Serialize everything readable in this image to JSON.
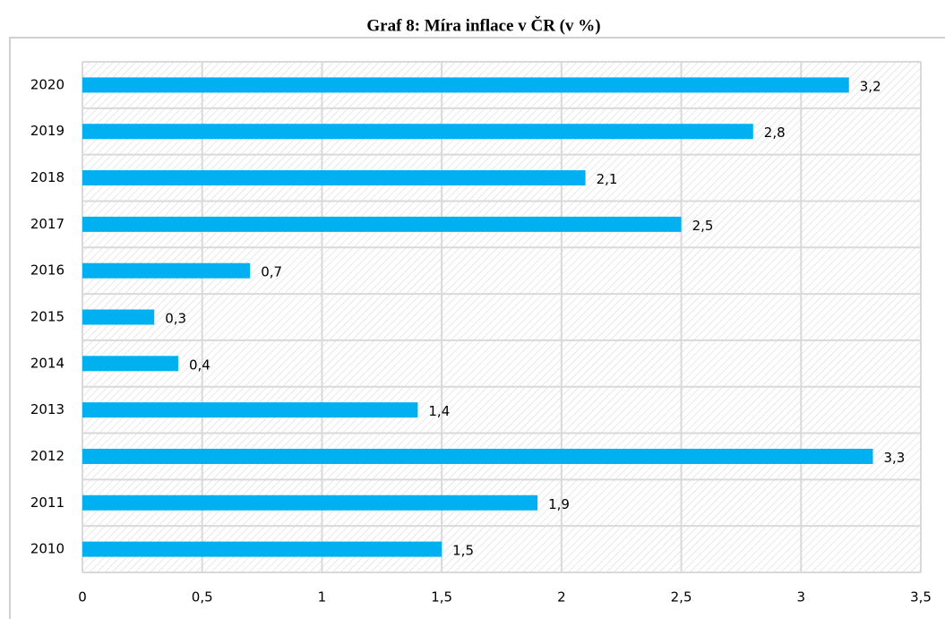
{
  "chart_data": {
    "type": "bar",
    "orientation": "horizontal",
    "title": "Graf 8: Míra inflace v ČR (v %)",
    "categories": [
      "2020",
      "2019",
      "2018",
      "2017",
      "2016",
      "2015",
      "2014",
      "2013",
      "2012",
      "2011",
      "2010"
    ],
    "values": [
      3.2,
      2.8,
      2.1,
      2.5,
      0.7,
      0.3,
      0.4,
      1.4,
      3.3,
      1.9,
      1.5
    ],
    "value_labels": [
      "3,2",
      "2,8",
      "2,1",
      "2,5",
      "0,7",
      "0,3",
      "0,4",
      "1,4",
      "3,3",
      "1,9",
      "1,5"
    ],
    "color": "#00b0f0",
    "xlim": [
      0,
      3.5
    ],
    "xticks": [
      0,
      {
        "value": 0.5,
        "label": "0,5"
      },
      1,
      {
        "value": 1.5,
        "label": "1,5"
      },
      2,
      {
        "value": 2.5,
        "label": "2,5"
      },
      3,
      {
        "value": 3.5,
        "label": "3,5"
      }
    ],
    "grid": true
  }
}
